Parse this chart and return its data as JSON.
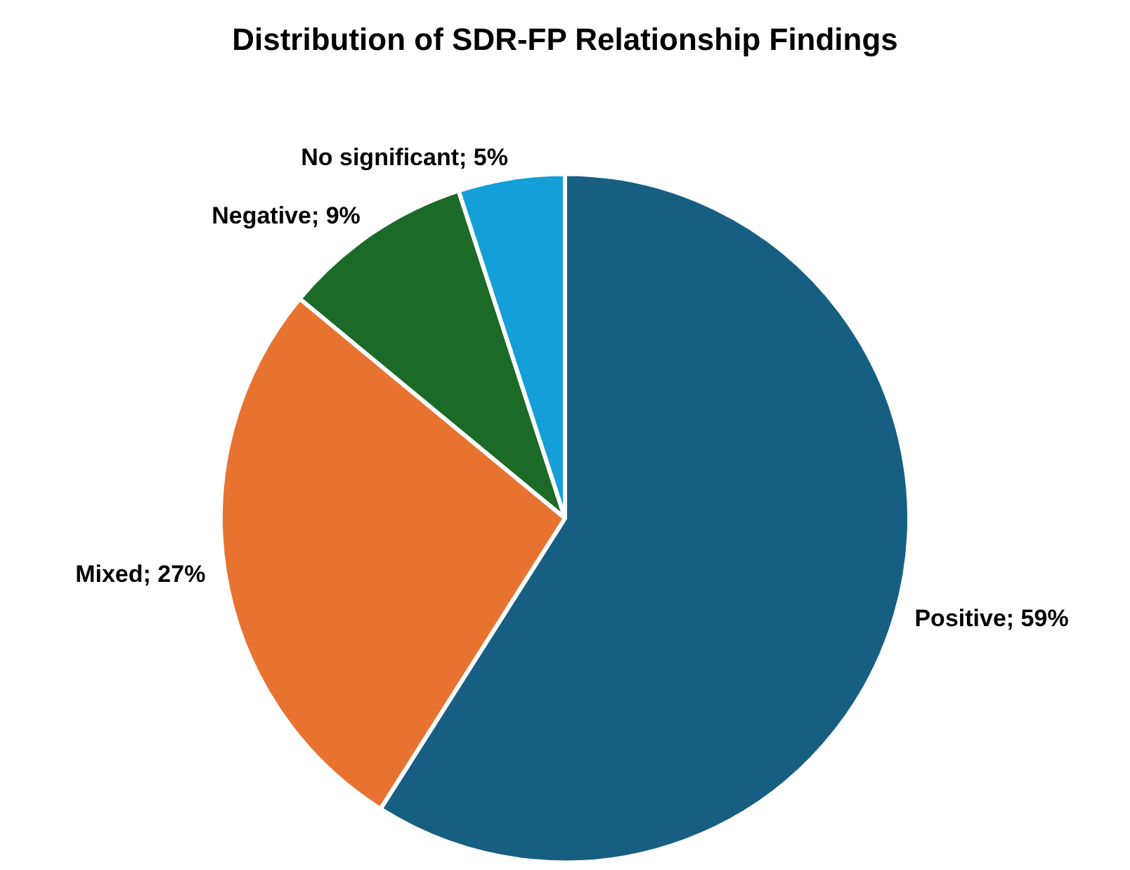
{
  "chart_data": {
    "type": "pie",
    "title": "Distribution of SDR-FP Relationship Findings",
    "categories": [
      "Positive",
      "Mixed",
      "Negative",
      "No significant"
    ],
    "values": [
      59,
      27,
      9,
      5
    ],
    "value_labels": [
      "59%",
      "27%",
      "9%",
      "5%"
    ],
    "colors": [
      "#175f82",
      "#e87331",
      "#1c6a28",
      "#149fd8"
    ],
    "legend": false
  }
}
